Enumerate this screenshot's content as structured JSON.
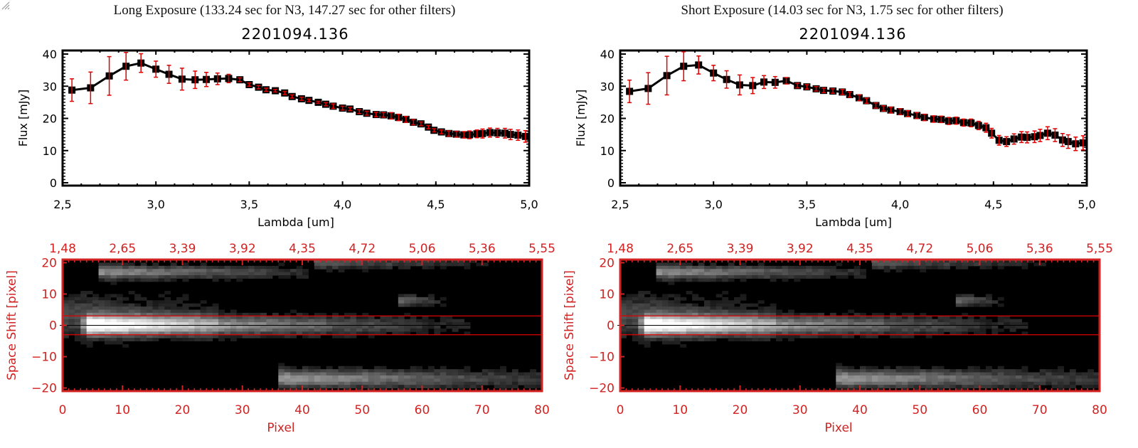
{
  "panels": [
    {
      "id": "long",
      "title": "Long Exposure (133.24 sec for N3, 147.27 sec for other filters)",
      "object_id": "2201094.136"
    },
    {
      "id": "short",
      "title": "Short Exposure (14.03 sec for N3, 1.75 sec for other filters)",
      "object_id": "2201094.136"
    }
  ],
  "colors": {
    "line": "#000000",
    "errorbar": "#e00000",
    "image_axis": "#d22222",
    "aperture_line": "#e00000",
    "center_line": "#000000"
  },
  "chart_data": [
    {
      "type": "line",
      "title": "2201094.136",
      "xlabel": "Lambda [um]",
      "ylabel": "Flux [mJy]",
      "xlim": [
        2.5,
        5.0
      ],
      "ylim": [
        -1,
        41
      ],
      "xticks": [
        "2.5",
        "3.0",
        "3.5",
        "4.0",
        "4.5",
        "5.0"
      ],
      "yticks": [
        "0",
        "10",
        "20",
        "30",
        "40"
      ],
      "series": [
        {
          "name": "Long Exposure",
          "x": [
            2.55,
            2.65,
            2.75,
            2.84,
            2.92,
            3.0,
            3.07,
            3.14,
            3.21,
            3.27,
            3.33,
            3.39,
            3.45,
            3.5,
            3.55,
            3.59,
            3.64,
            3.69,
            3.73,
            3.78,
            3.82,
            3.87,
            3.91,
            3.95,
            4.0,
            4.04,
            4.09,
            4.13,
            4.18,
            4.22,
            4.26,
            4.3,
            4.34,
            4.38,
            4.42,
            4.46,
            4.49,
            4.53,
            4.57,
            4.61,
            4.65,
            4.68,
            4.72,
            4.75,
            4.79,
            4.83,
            4.87,
            4.9,
            4.94,
            4.98
          ],
          "y": [
            28.8,
            29.5,
            33.2,
            36.2,
            37.2,
            35.3,
            33.7,
            32.2,
            32.0,
            32.1,
            32.3,
            32.4,
            32.0,
            30.5,
            29.7,
            28.9,
            28.6,
            27.9,
            26.8,
            26.1,
            25.6,
            25.0,
            24.4,
            23.8,
            23.2,
            22.9,
            22.1,
            21.6,
            21.2,
            21.1,
            20.8,
            20.3,
            19.7,
            18.8,
            18.3,
            17.3,
            16.3,
            15.8,
            15.3,
            15.1,
            14.9,
            14.9,
            15.2,
            15.3,
            15.6,
            15.5,
            15.4,
            15.0,
            14.8,
            14.4
          ],
          "err": [
            3.5,
            4.9,
            6.0,
            4.3,
            2.9,
            2.5,
            2.8,
            3.4,
            2.7,
            2.2,
            1.8,
            1.3,
            0.6,
            0.5,
            0.5,
            0.5,
            0.4,
            0.5,
            0.5,
            0.5,
            0.4,
            0.3,
            0.5,
            0.7,
            0.6,
            0.5,
            0.6,
            0.6,
            0.7,
            0.7,
            1.0,
            1.0,
            0.9,
            0.8,
            0.6,
            0.5,
            0.5,
            0.6,
            0.8,
            0.9,
            1.0,
            1.2,
            1.2,
            1.4,
            1.4,
            1.4,
            1.5,
            1.6,
            1.6,
            1.8
          ]
        }
      ]
    },
    {
      "type": "heatmap",
      "xlabel": "Pixel",
      "ylabel": "Space Shift [pixel]",
      "xlim": [
        0,
        80
      ],
      "ylim": [
        -21,
        21
      ],
      "xticks": [
        "0",
        "10",
        "20",
        "30",
        "40",
        "50",
        "60",
        "70",
        "80"
      ],
      "yticks": [
        "-20",
        "-10",
        "0",
        "10",
        "20"
      ],
      "top_xticks": [
        "1.48",
        "2.65",
        "3.39",
        "3.92",
        "4.35",
        "4.72",
        "5.06",
        "5.36",
        "5.55"
      ],
      "aperture_lines": [
        3,
        -3
      ],
      "center_line": 0,
      "sources": [
        {
          "x0": 4,
          "x1": 67,
          "y": 0,
          "peak": 1.0,
          "sigma": 2.2,
          "description": "target spectrum, bright at left fading right"
        },
        {
          "x0": 7,
          "x1": 40,
          "y": 17,
          "peak": 0.55,
          "sigma": 1.5
        },
        {
          "x0": 43,
          "x1": 70,
          "y": 20,
          "peak": 0.35,
          "sigma": 1.4
        },
        {
          "x0": 57,
          "x1": 63,
          "y": 8,
          "peak": 0.4,
          "sigma": 1.2
        },
        {
          "x0": 0,
          "x1": 25,
          "y": 3,
          "peak": 0.3,
          "sigma": 5
        },
        {
          "x0": 37,
          "x1": 80,
          "y": -17,
          "peak": 0.6,
          "sigma": 2.0
        }
      ]
    },
    {
      "type": "line",
      "title": "2201094.136",
      "xlabel": "Lambda [um]",
      "ylabel": "Flux [mJy]",
      "xlim": [
        2.5,
        5.0
      ],
      "ylim": [
        -1,
        41
      ],
      "xticks": [
        "2.5",
        "3.0",
        "3.5",
        "4.0",
        "4.5",
        "5.0"
      ],
      "yticks": [
        "0",
        "10",
        "20",
        "30",
        "40"
      ],
      "series": [
        {
          "name": "Short Exposure",
          "x": [
            2.55,
            2.65,
            2.75,
            2.84,
            2.92,
            3.0,
            3.07,
            3.14,
            3.21,
            3.27,
            3.33,
            3.39,
            3.45,
            3.5,
            3.55,
            3.59,
            3.64,
            3.69,
            3.73,
            3.78,
            3.82,
            3.87,
            3.91,
            3.95,
            4.0,
            4.04,
            4.09,
            4.13,
            4.18,
            4.22,
            4.26,
            4.3,
            4.34,
            4.38,
            4.42,
            4.46,
            4.49,
            4.53,
            4.57,
            4.61,
            4.65,
            4.68,
            4.72,
            4.75,
            4.79,
            4.83,
            4.87,
            4.9,
            4.94,
            4.98
          ],
          "y": [
            28.4,
            29.3,
            33.3,
            36.2,
            36.6,
            34.1,
            32.1,
            30.4,
            30.2,
            31.3,
            31.2,
            31.7,
            30.2,
            29.8,
            29.2,
            28.7,
            28.5,
            28.2,
            27.4,
            26.4,
            25.5,
            24.0,
            23.1,
            22.6,
            22.1,
            21.5,
            20.9,
            20.3,
            19.8,
            19.7,
            19.2,
            19.3,
            18.7,
            18.6,
            17.8,
            17.1,
            15.4,
            13.2,
            12.8,
            13.6,
            14.2,
            14.1,
            14.3,
            14.7,
            15.4,
            14.8,
            13.3,
            12.8,
            12.1,
            12.4
          ],
          "err": [
            3.5,
            4.9,
            6.0,
            4.5,
            2.8,
            2.4,
            2.7,
            3.1,
            2.5,
            2.0,
            1.8,
            1.0,
            0.7,
            0.7,
            0.7,
            0.7,
            0.7,
            0.8,
            0.8,
            0.9,
            0.8,
            0.8,
            0.8,
            0.9,
            0.9,
            0.9,
            0.9,
            1.0,
            1.0,
            1.0,
            1.1,
            1.1,
            1.1,
            1.2,
            1.3,
            1.4,
            1.5,
            1.5,
            1.5,
            1.6,
            1.7,
            1.7,
            1.8,
            1.9,
            2.0,
            2.0,
            2.0,
            2.1,
            2.1,
            2.2
          ]
        }
      ]
    },
    {
      "type": "heatmap",
      "xlabel": "Pixel",
      "ylabel": "Space Shift [pixel]",
      "xlim": [
        0,
        80
      ],
      "ylim": [
        -21,
        21
      ],
      "xticks": [
        "0",
        "10",
        "20",
        "30",
        "40",
        "50",
        "60",
        "70",
        "80"
      ],
      "yticks": [
        "-20",
        "-10",
        "0",
        "10",
        "20"
      ],
      "top_xticks": [
        "1.48",
        "2.65",
        "3.39",
        "3.92",
        "4.35",
        "4.72",
        "5.06",
        "5.36",
        "5.55"
      ],
      "aperture_lines": [
        3,
        -3
      ],
      "center_line": 0,
      "sources": [
        {
          "x0": 4,
          "x1": 67,
          "y": 0,
          "peak": 1.0,
          "sigma": 2.2
        },
        {
          "x0": 7,
          "x1": 40,
          "y": 17,
          "peak": 0.55,
          "sigma": 1.5
        },
        {
          "x0": 43,
          "x1": 70,
          "y": 20,
          "peak": 0.35,
          "sigma": 1.4
        },
        {
          "x0": 57,
          "x1": 63,
          "y": 8,
          "peak": 0.4,
          "sigma": 1.2
        },
        {
          "x0": 0,
          "x1": 25,
          "y": 3,
          "peak": 0.3,
          "sigma": 5
        },
        {
          "x0": 37,
          "x1": 80,
          "y": -17,
          "peak": 0.6,
          "sigma": 2.0
        }
      ]
    }
  ]
}
